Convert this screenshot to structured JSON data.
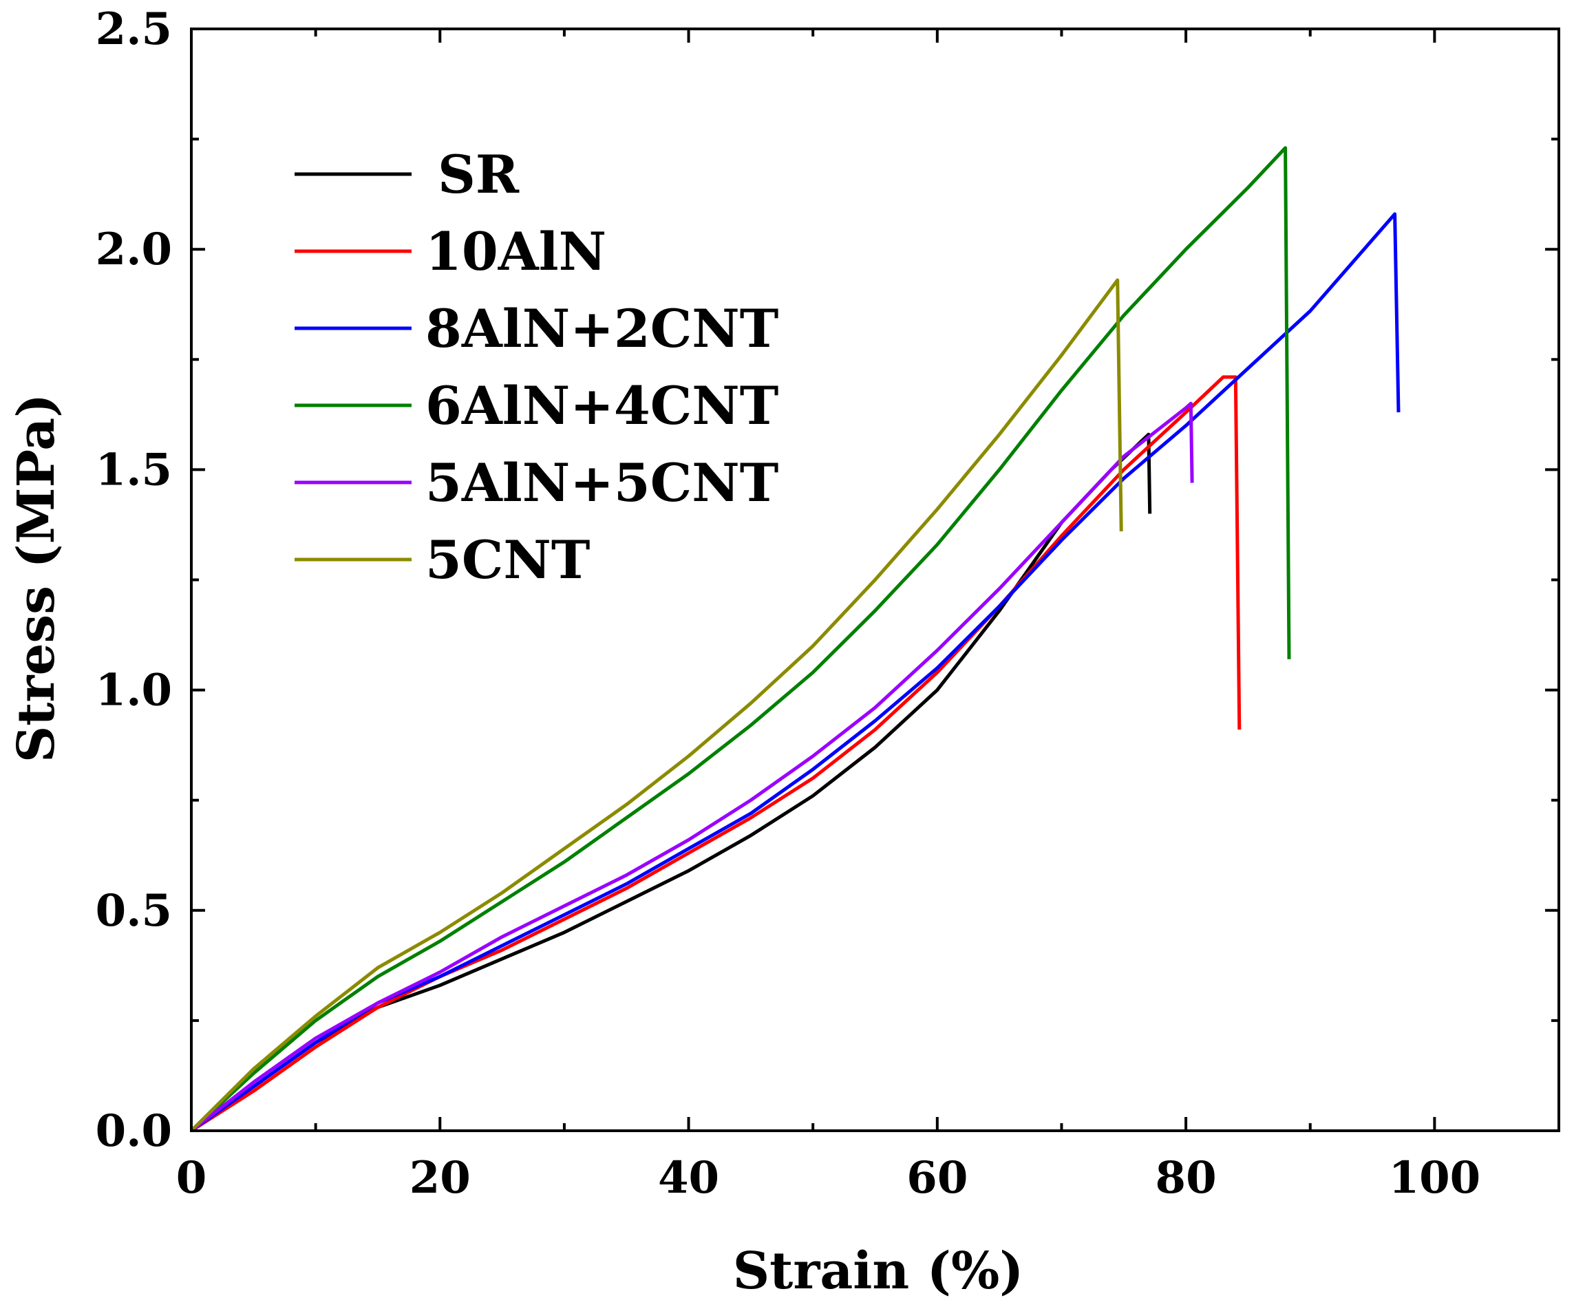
{
  "chart_data": {
    "type": "line",
    "title": "",
    "xlabel": "Strain (%)",
    "ylabel": "Stress (MPa)",
    "xlim": [
      0,
      110
    ],
    "ylim": [
      0,
      2.5
    ],
    "xticks": [
      0,
      20,
      40,
      60,
      80,
      100
    ],
    "xtick_labels": [
      "0",
      "20",
      "40",
      "60",
      "80",
      "100"
    ],
    "yticks": [
      0,
      0.5,
      1.0,
      1.5,
      2.0,
      2.5
    ],
    "ytick_labels": [
      "0.0",
      "0.5",
      "1.0",
      "1.5",
      "2.0",
      "2.5"
    ],
    "grid": false,
    "legend_position": "top-left",
    "series": [
      {
        "name": "SR",
        "color": "#000000",
        "x": [
          0,
          5,
          10,
          15,
          20,
          25,
          30,
          35,
          40,
          45,
          50,
          55,
          60,
          65,
          70,
          74,
          77,
          77.1
        ],
        "y": [
          0,
          0.1,
          0.2,
          0.28,
          0.33,
          0.39,
          0.45,
          0.52,
          0.59,
          0.67,
          0.76,
          0.87,
          1.0,
          1.18,
          1.38,
          1.5,
          1.58,
          1.4
        ]
      },
      {
        "name": "10AlN",
        "color": "#ff0000",
        "x": [
          0,
          5,
          10,
          15,
          20,
          25,
          30,
          35,
          40,
          45,
          50,
          55,
          60,
          65,
          70,
          75,
          80,
          83,
          84,
          84.3
        ],
        "y": [
          0,
          0.09,
          0.19,
          0.28,
          0.35,
          0.41,
          0.48,
          0.55,
          0.63,
          0.71,
          0.8,
          0.91,
          1.04,
          1.19,
          1.35,
          1.5,
          1.63,
          1.71,
          1.71,
          0.91
        ]
      },
      {
        "name": "8AlN+2CNT",
        "color": "#0000ff",
        "x": [
          0,
          5,
          10,
          15,
          20,
          25,
          30,
          35,
          40,
          45,
          50,
          55,
          60,
          65,
          70,
          75,
          80,
          85,
          90,
          96.8,
          97.1
        ],
        "y": [
          0,
          0.1,
          0.2,
          0.29,
          0.35,
          0.42,
          0.49,
          0.56,
          0.64,
          0.72,
          0.82,
          0.93,
          1.05,
          1.19,
          1.34,
          1.48,
          1.6,
          1.73,
          1.86,
          2.08,
          1.63
        ]
      },
      {
        "name": "6AlN+4CNT",
        "color": "#008000",
        "x": [
          0,
          5,
          10,
          15,
          20,
          25,
          30,
          35,
          40,
          45,
          50,
          55,
          60,
          65,
          70,
          75,
          80,
          85,
          88,
          88.3
        ],
        "y": [
          0,
          0.13,
          0.25,
          0.35,
          0.43,
          0.52,
          0.61,
          0.71,
          0.81,
          0.92,
          1.04,
          1.18,
          1.33,
          1.5,
          1.68,
          1.85,
          2.0,
          2.14,
          2.23,
          1.07
        ]
      },
      {
        "name": "5AlN+5CNT",
        "color": "#9a00ff",
        "x": [
          0,
          5,
          10,
          15,
          20,
          25,
          30,
          35,
          40,
          45,
          50,
          55,
          60,
          65,
          70,
          75,
          80,
          80.4,
          80.5
        ],
        "y": [
          0,
          0.11,
          0.21,
          0.29,
          0.36,
          0.44,
          0.51,
          0.58,
          0.66,
          0.75,
          0.85,
          0.96,
          1.09,
          1.23,
          1.38,
          1.53,
          1.64,
          1.65,
          1.47
        ]
      },
      {
        "name": "5CNT",
        "color": "#8b8b00",
        "x": [
          0,
          5,
          10,
          15,
          20,
          25,
          30,
          35,
          40,
          45,
          50,
          55,
          60,
          65,
          70,
          74.5,
          74.8
        ],
        "y": [
          0,
          0.14,
          0.26,
          0.37,
          0.45,
          0.54,
          0.64,
          0.74,
          0.85,
          0.97,
          1.1,
          1.25,
          1.41,
          1.58,
          1.76,
          1.93,
          1.36
        ]
      }
    ]
  }
}
